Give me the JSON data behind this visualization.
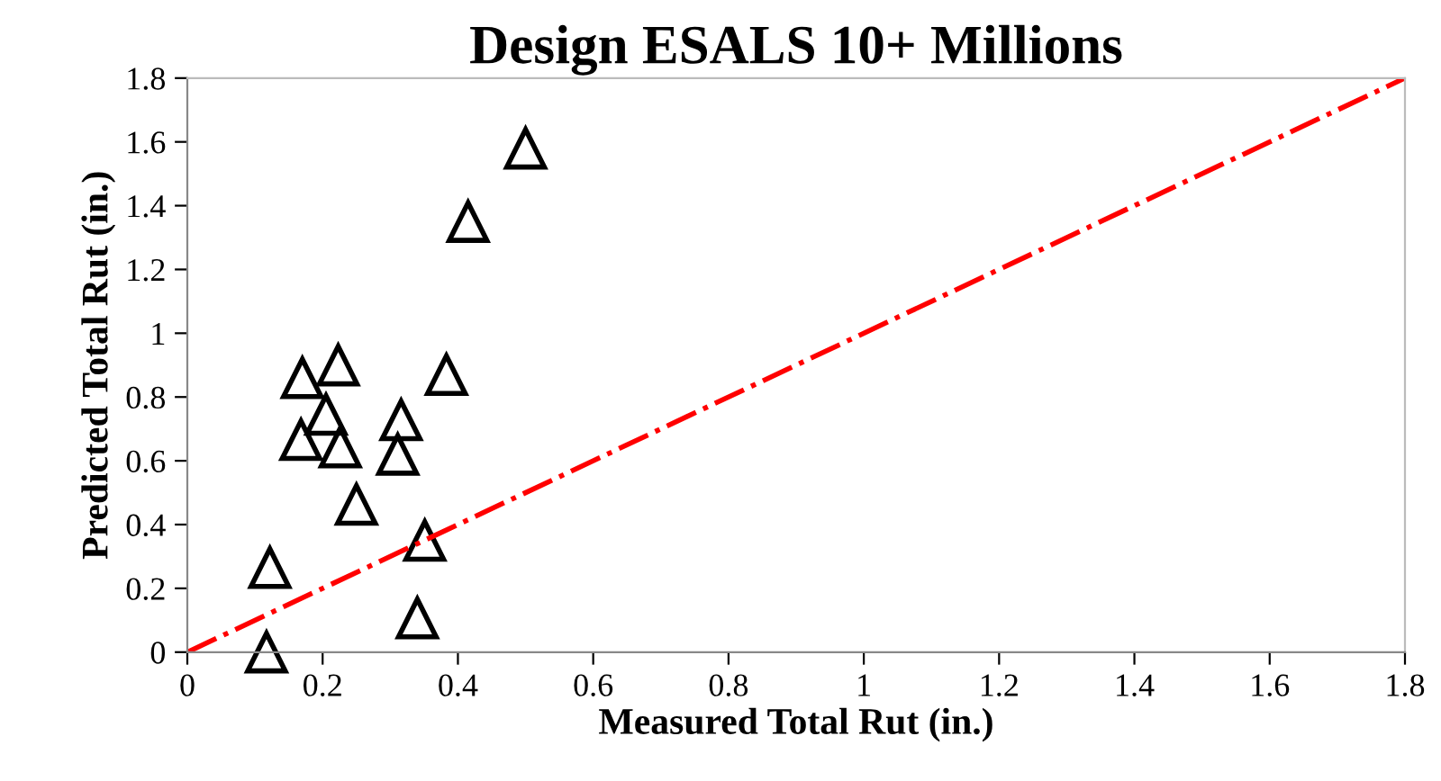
{
  "chart_data": {
    "type": "scatter",
    "title": "Design ESALS 10+ Millions",
    "xlabel": "Measured Total Rut (in.)",
    "ylabel": "Predicted Total Rut (in.)",
    "xlim": [
      0,
      1.8
    ],
    "ylim": [
      0,
      1.8
    ],
    "xticks": [
      0,
      0.2,
      0.4,
      0.6,
      0.8,
      1,
      1.2,
      1.4,
      1.6,
      1.8
    ],
    "yticks": [
      0,
      0.2,
      0.4,
      0.6,
      0.8,
      1,
      1.2,
      1.4,
      1.6,
      1.8
    ],
    "grid": false,
    "legend": false,
    "series": [
      {
        "marker": "triangle",
        "color": "#000000",
        "x": [
          0.5,
          0.415,
          0.223,
          0.17,
          0.383,
          0.205,
          0.168,
          0.226,
          0.316,
          0.311,
          0.25,
          0.351,
          0.122,
          0.34,
          0.117
        ],
        "values": [
          1.58,
          1.35,
          0.9,
          0.86,
          0.87,
          0.745,
          0.666,
          0.643,
          0.728,
          0.62,
          0.463,
          0.35,
          0.265,
          0.107,
          0.0
        ]
      },
      {
        "type": "line",
        "marker": "none",
        "line_style": "dashdot",
        "color": "#ff0000",
        "x": [
          0,
          1.8
        ],
        "values": [
          0,
          1.8
        ]
      }
    ]
  }
}
